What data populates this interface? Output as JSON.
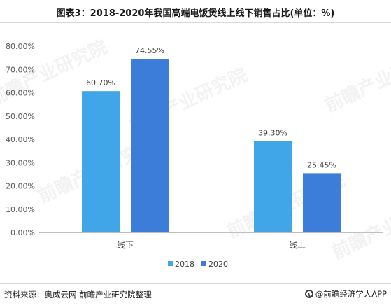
{
  "title": "图表3：2018-2020年我国高端电饭煲线上线下销售占比(单位：%)",
  "source": "资料来源：奥威云网 前瞻产业研究院整理",
  "brand": "@前瞻经济学人APP",
  "watermark": "前瞻产业研究院",
  "colors": {
    "series_2018": "#41A6E8",
    "series_2020": "#3B7DD8"
  },
  "chart_data": {
    "type": "bar",
    "title": "图表3：2018-2020年我国高端电饭煲线上线下销售占比(单位：%)",
    "categories": [
      "线下",
      "线上"
    ],
    "series": [
      {
        "name": "2018",
        "values": [
          60.7,
          39.3
        ],
        "labels": [
          "60.70%",
          "39.30%"
        ]
      },
      {
        "name": "2020",
        "values": [
          74.55,
          25.45
        ],
        "labels": [
          "74.55%",
          "25.45%"
        ]
      }
    ],
    "y_ticks": [
      "0.00%",
      "10.00%",
      "20.00%",
      "30.00%",
      "40.00%",
      "50.00%",
      "60.00%",
      "70.00%",
      "80.00%"
    ],
    "ylim": [
      0,
      80
    ],
    "xlabel": "",
    "ylabel": "",
    "grid": false,
    "legend": "bottom"
  }
}
